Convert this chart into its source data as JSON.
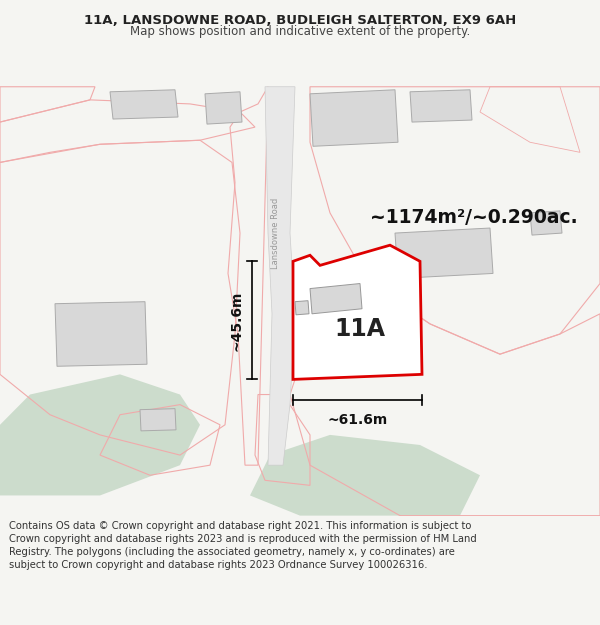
{
  "title_line1": "11A, LANSDOWNE ROAD, BUDLEIGH SALTERTON, EX9 6AH",
  "title_line2": "Map shows position and indicative extent of the property.",
  "area_label": "~1174m²/~0.290ac.",
  "property_label": "11A",
  "dim_width": "~61.6m",
  "dim_height": "~45.6m",
  "road_label": "Lansdowne Road",
  "footer_text": "Contains OS data © Crown copyright and database right 2021. This information is subject to Crown copyright and database rights 2023 and is reproduced with the permission of HM Land Registry. The polygons (including the associated geometry, namely x, y co-ordinates) are subject to Crown copyright and database rights 2023 Ordnance Survey 100026316.",
  "bg_color": "#f5f5f2",
  "map_bg": "#ffffff",
  "red_color": "#dd0000",
  "light_red": "#f0aaaa",
  "green_color": "#ccdccc",
  "title_fontsize": 9.5,
  "footer_fontsize": 7.2,
  "road_color": "#e8e8e8",
  "road_edge": "#cccccc",
  "bld_color": "#d8d8d8",
  "bld_edge": "#aaaaaa"
}
